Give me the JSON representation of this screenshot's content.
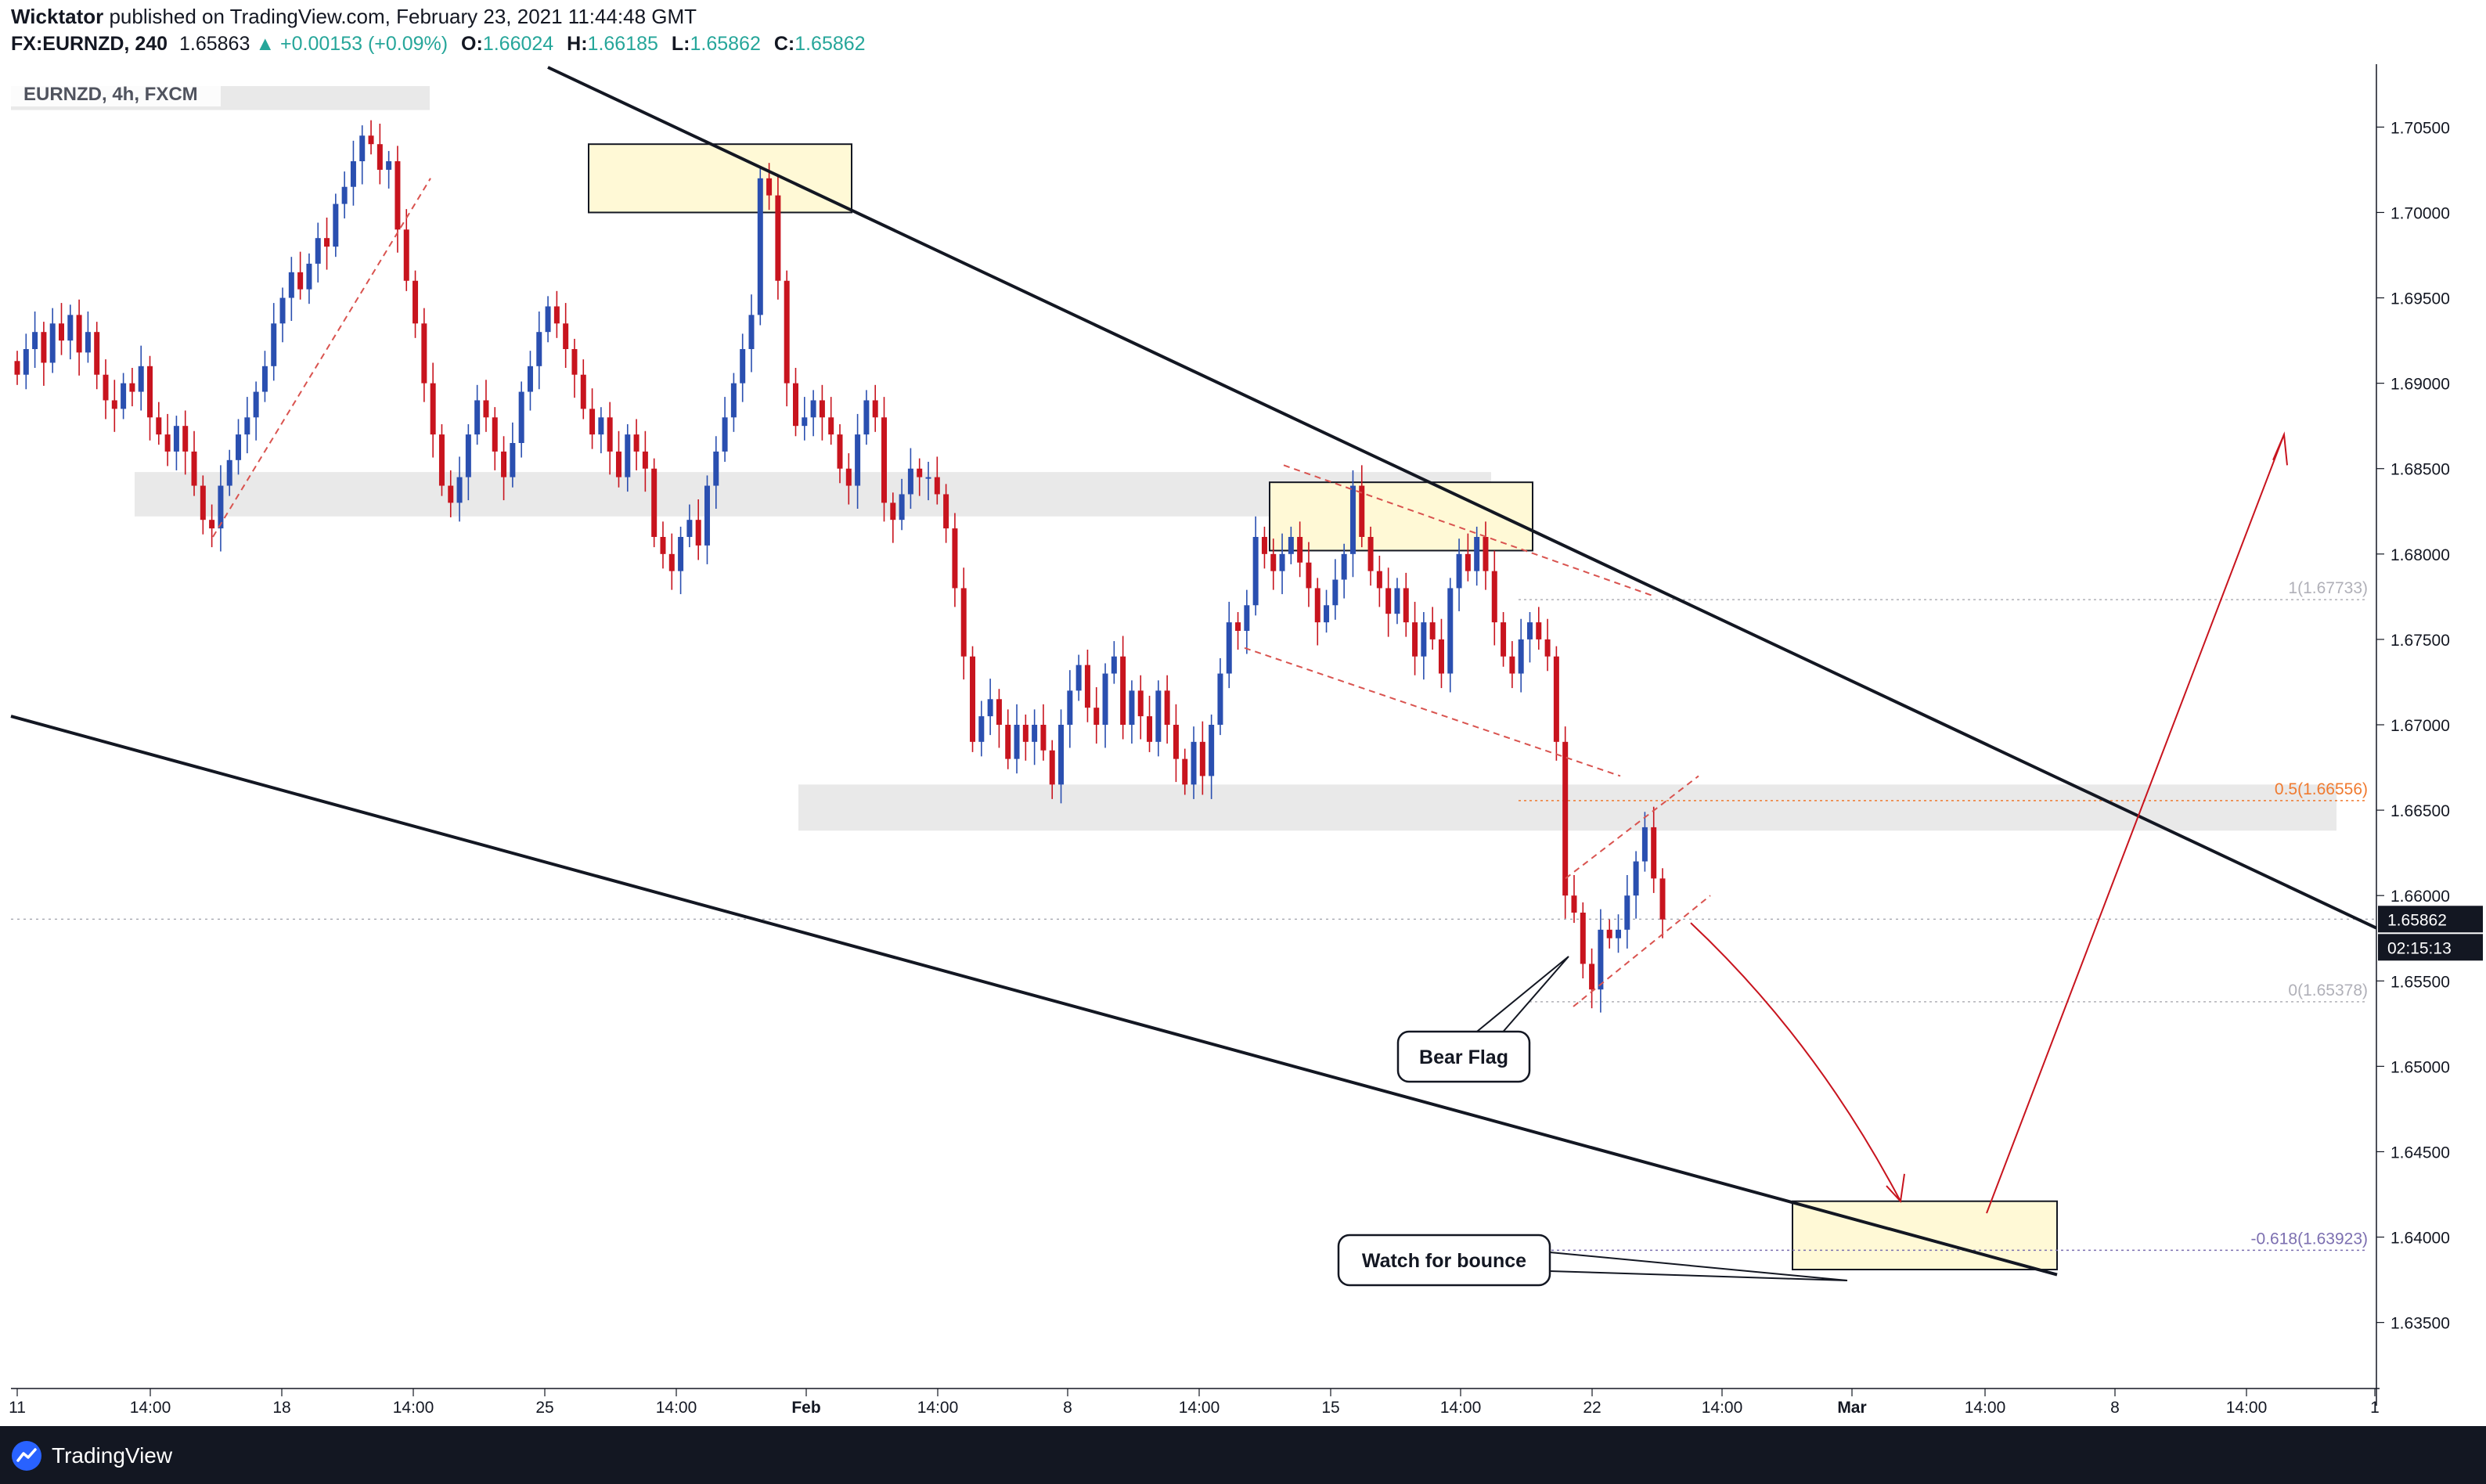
{
  "header": {
    "publisher": "Wicktator",
    "published_text": "published on TradingView.com, February 23, 2021 11:44:48 GMT",
    "symbol": "FX:EURNZD, 240",
    "last_price": "1.65863",
    "change_arrow": "▲",
    "change": "+0.00153 (+0.09%)",
    "o_label": "O:",
    "o_value": "1.66024",
    "h_label": "H:",
    "h_value": "1.66185",
    "l_label": "L:",
    "l_value": "1.65862",
    "c_label": "C:",
    "c_value": "1.65862"
  },
  "footer": {
    "brand": "TradingView",
    "logo_icon": "tradingview-logo-icon"
  },
  "colors": {
    "up": "#2a4fb0",
    "down": "#c8141e",
    "trendline": "#131722",
    "pattern": "#d9534f",
    "zone_fill": "#fff9d6",
    "band_fill": "#e9e9e9",
    "fib_mid": "#f07a2f",
    "fib_neg": "#7c6fb0"
  },
  "chart_data": {
    "type": "candlestick",
    "title": "EURNZD, 4h, FXCM",
    "x_tick_labels": [
      "11",
      "14:00",
      "18",
      "14:00",
      "25",
      "14:00",
      "Feb",
      "14:00",
      "8",
      "14:00",
      "15",
      "14:00",
      "22",
      "14:00",
      "Mar",
      "14:00",
      "8",
      "14:00",
      "1"
    ],
    "y_tick_labels": [
      "1.70500",
      "1.70000",
      "1.69500",
      "1.69000",
      "1.68500",
      "1.68000",
      "1.67500",
      "1.67000",
      "1.66500",
      "1.66000",
      "1.65500",
      "1.65000",
      "1.64500",
      "1.64000",
      "1.63500"
    ],
    "ylim": [
      1.6315,
      1.7085
    ],
    "last_price_label": "1.65862",
    "countdown_label": "02:15:13",
    "fib_levels": [
      {
        "label": "1(1.67733)",
        "value": 1.67733
      },
      {
        "label": "0.5(1.66556)",
        "value": 1.66556
      },
      {
        "label": "0(1.65378)",
        "value": 1.65378
      },
      {
        "label": "-0.618(1.63923)",
        "value": 1.63923
      }
    ],
    "annotations": [
      "Bear Flag",
      "Watch for bounce"
    ],
    "candles_close_approx": [
      1.6905,
      1.692,
      1.693,
      1.6912,
      1.6935,
      1.6925,
      1.694,
      1.6918,
      1.693,
      1.6905,
      1.689,
      1.6885,
      1.69,
      1.6895,
      1.691,
      1.688,
      1.687,
      1.686,
      1.6875,
      1.686,
      1.684,
      1.682,
      1.6815,
      1.684,
      1.6855,
      1.687,
      1.688,
      1.6895,
      1.691,
      1.6935,
      1.695,
      1.6965,
      1.6955,
      1.697,
      1.6985,
      1.698,
      1.7005,
      1.7015,
      1.703,
      1.7045,
      1.704,
      1.7025,
      1.703,
      1.699,
      1.696,
      1.6935,
      1.69,
      1.687,
      1.684,
      1.683,
      1.6845,
      1.687,
      1.689,
      1.688,
      1.686,
      1.6845,
      1.6865,
      1.6895,
      1.691,
      1.693,
      1.6945,
      1.6935,
      1.692,
      1.6905,
      1.6885,
      1.687,
      1.688,
      1.686,
      1.6845,
      1.687,
      1.686,
      1.685,
      1.681,
      1.68,
      1.679,
      1.681,
      1.682,
      1.6805,
      1.684,
      1.686,
      1.688,
      1.69,
      1.692,
      1.694,
      1.702,
      1.701,
      1.696,
      1.69,
      1.6875,
      1.688,
      1.689,
      1.688,
      1.687,
      1.685,
      1.684,
      1.687,
      1.689,
      1.688,
      1.683,
      1.682,
      1.6835,
      1.685,
      1.6845,
      1.6845,
      1.6835,
      1.6815,
      1.678,
      1.674,
      1.669,
      1.6705,
      1.6715,
      1.67,
      1.668,
      1.67,
      1.669,
      1.67,
      1.6685,
      1.6665,
      1.67,
      1.672,
      1.6735,
      1.671,
      1.67,
      1.673,
      1.674,
      1.67,
      1.672,
      1.6705,
      1.669,
      1.672,
      1.67,
      1.668,
      1.6665,
      1.669,
      1.667,
      1.67,
      1.673,
      1.676,
      1.6755,
      1.677,
      1.681,
      1.68,
      1.679,
      1.68,
      1.681,
      1.6795,
      1.678,
      1.676,
      1.677,
      1.6785,
      1.68,
      1.684,
      1.681,
      1.679,
      1.678,
      1.6765,
      1.678,
      1.676,
      1.674,
      1.676,
      1.675,
      1.673,
      1.678,
      1.68,
      1.679,
      1.681,
      1.679,
      1.676,
      1.674,
      1.673,
      1.675,
      1.676,
      1.675,
      1.674,
      1.669,
      1.66,
      1.659,
      1.656,
      1.6545,
      1.658,
      1.6575,
      1.658,
      1.66,
      1.662,
      1.664,
      1.661,
      1.6586
    ]
  }
}
